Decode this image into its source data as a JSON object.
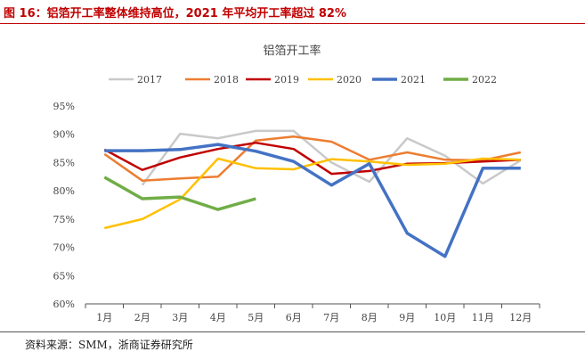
{
  "figure_title": "图 16：铝箔开工率整体维持高位，2021 年平均开工率超过 82%",
  "source": "资料来源：SMM，浙商证券研究所",
  "chart_data": {
    "type": "line",
    "title": "铝箔开工率",
    "categories": [
      "1月",
      "2月",
      "3月",
      "4月",
      "5月",
      "6月",
      "7月",
      "8月",
      "9月",
      "10月",
      "11月",
      "12月"
    ],
    "ylim": [
      60,
      95
    ],
    "yticks": [
      "60%",
      "65%",
      "70%",
      "75%",
      "80%",
      "85%",
      "90%",
      "95%"
    ],
    "legend_position": "top",
    "series": [
      {
        "name": "2017",
        "color": "#c9c9c9",
        "values": [
          null,
          81.0,
          90.1,
          89.3,
          90.6,
          90.6,
          85.0,
          81.6,
          89.3,
          86.2,
          81.3,
          85.4
        ]
      },
      {
        "name": "2018",
        "color": "#ed7d31",
        "values": [
          86.5,
          81.8,
          82.2,
          82.5,
          88.9,
          89.6,
          88.7,
          85.5,
          86.8,
          85.5,
          85.4,
          86.8
        ]
      },
      {
        "name": "2019",
        "color": "#c00000",
        "values": [
          87.3,
          83.7,
          85.9,
          87.4,
          88.5,
          87.4,
          83.0,
          83.5,
          84.8,
          84.9,
          85.2,
          85.5
        ]
      },
      {
        "name": "2020",
        "color": "#ffc000",
        "values": [
          73.4,
          75.0,
          78.5,
          85.7,
          84.0,
          83.8,
          85.6,
          85.2,
          84.6,
          84.8,
          85.7,
          85.5
        ]
      },
      {
        "name": "2021",
        "color": "#4472c4",
        "values": [
          87.1,
          87.1,
          87.3,
          88.2,
          87.0,
          85.2,
          81.0,
          84.8,
          72.5,
          68.4,
          84.0,
          84.0
        ]
      },
      {
        "name": "2022",
        "color": "#70ad47",
        "values": [
          82.4,
          78.6,
          78.9,
          76.7,
          78.6,
          null,
          null,
          null,
          null,
          null,
          null,
          null
        ]
      }
    ]
  }
}
